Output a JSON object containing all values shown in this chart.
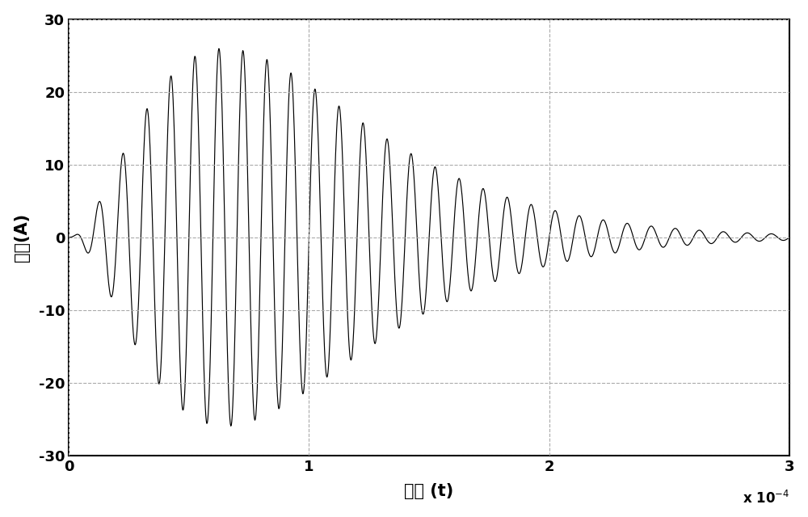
{
  "xlabel": "时间 (t)",
  "ylabel": "幅度(A)",
  "xlim": [
    0,
    0.0003
  ],
  "ylim": [
    -30,
    30
  ],
  "xtick_vals": [
    0,
    0.0001,
    0.0002,
    0.0003
  ],
  "xtick_labels": [
    "0",
    "1",
    "2",
    "3"
  ],
  "yticks": [
    -30,
    -20,
    -10,
    0,
    10,
    20,
    30
  ],
  "carrier_freq": 100000,
  "sample_rate": 5000000,
  "duration": 0.0003,
  "t_peak": 6.5e-05,
  "peak_amplitude": 26,
  "grid_color": "#aaaaaa",
  "line_color": "#000000",
  "bg_color": "#ffffff",
  "line_width": 0.85,
  "figsize": [
    10.0,
    6.4
  ],
  "dpi": 100,
  "tick_fontsize": 13,
  "label_fontsize": 15,
  "spine_linewidth": 1.5
}
